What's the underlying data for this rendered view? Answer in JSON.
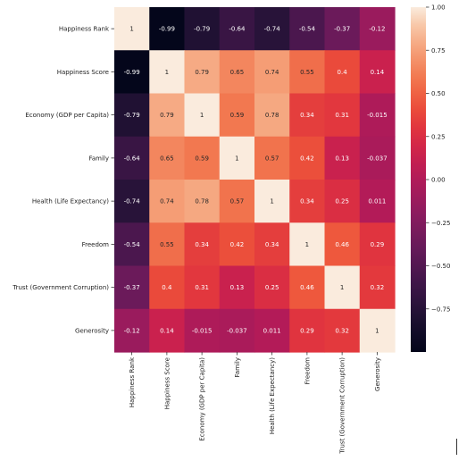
{
  "chart_data": {
    "type": "heatmap",
    "title": "",
    "xlabel": "",
    "ylabel": "",
    "rows": [
      "Happiness Rank",
      "Happiness Score",
      "Economy (GDP per Capita)",
      "Family",
      "Health (Life Expectancy)",
      "Freedom",
      "Trust (Government Corruption)",
      "Generosity"
    ],
    "columns": [
      "Happiness Rank",
      "Happiness Score",
      "Economy (GDP per Capita)",
      "Family",
      "Health (Life Expectancy)",
      "Freedom",
      "Trust (Government Corruption)",
      "Generosity"
    ],
    "values": [
      [
        1,
        -0.99,
        -0.79,
        -0.64,
        -0.74,
        -0.54,
        -0.37,
        -0.12
      ],
      [
        -0.99,
        1,
        0.79,
        0.65,
        0.74,
        0.55,
        0.4,
        0.14
      ],
      [
        -0.79,
        0.79,
        1,
        0.59,
        0.78,
        0.34,
        0.31,
        -0.015
      ],
      [
        -0.64,
        0.65,
        0.59,
        1,
        0.57,
        0.42,
        0.13,
        -0.037
      ],
      [
        -0.74,
        0.74,
        0.78,
        0.57,
        1,
        0.34,
        0.25,
        0.011
      ],
      [
        -0.54,
        0.55,
        0.34,
        0.42,
        0.34,
        1,
        0.46,
        0.29
      ],
      [
        -0.37,
        0.4,
        0.31,
        0.13,
        0.25,
        0.46,
        1,
        0.32
      ],
      [
        -0.12,
        0.14,
        -0.015,
        -0.037,
        0.011,
        0.29,
        0.32,
        1
      ]
    ],
    "annotations": [
      [
        "1",
        "-0.99",
        "-0.79",
        "-0.64",
        "-0.74",
        "-0.54",
        "-0.37",
        "-0.12"
      ],
      [
        "-0.99",
        "1",
        "0.79",
        "0.65",
        "0.74",
        "0.55",
        "0.4",
        "0.14"
      ],
      [
        "-0.79",
        "0.79",
        "1",
        "0.59",
        "0.78",
        "0.34",
        "0.31",
        "-0.015"
      ],
      [
        "-0.64",
        "0.65",
        "0.59",
        "1",
        "0.57",
        "0.42",
        "0.13",
        "-0.037"
      ],
      [
        "-0.74",
        "0.74",
        "0.78",
        "0.57",
        "1",
        "0.34",
        "0.25",
        "0.011"
      ],
      [
        "-0.54",
        "0.55",
        "0.34",
        "0.42",
        "0.34",
        "1",
        "0.46",
        "0.29"
      ],
      [
        "-0.37",
        "0.4",
        "0.31",
        "0.13",
        "0.25",
        "0.46",
        "1",
        "0.32"
      ],
      [
        "-0.12",
        "0.14",
        "-0.015",
        "-0.037",
        "0.011",
        "0.29",
        "0.32",
        "1"
      ]
    ],
    "colorscale": "rocket",
    "colorbar": {
      "range": [
        -1.0,
        1.0
      ],
      "ticks": [
        1.0,
        0.75,
        0.5,
        0.25,
        0.0,
        -0.25,
        -0.5,
        -0.75
      ],
      "tick_labels": [
        "1.00",
        "0.75",
        "0.50",
        "0.25",
        "0.00",
        "−0.25",
        "−0.50",
        "−0.75"
      ]
    },
    "grid": false,
    "legend": "colorbar-right"
  }
}
